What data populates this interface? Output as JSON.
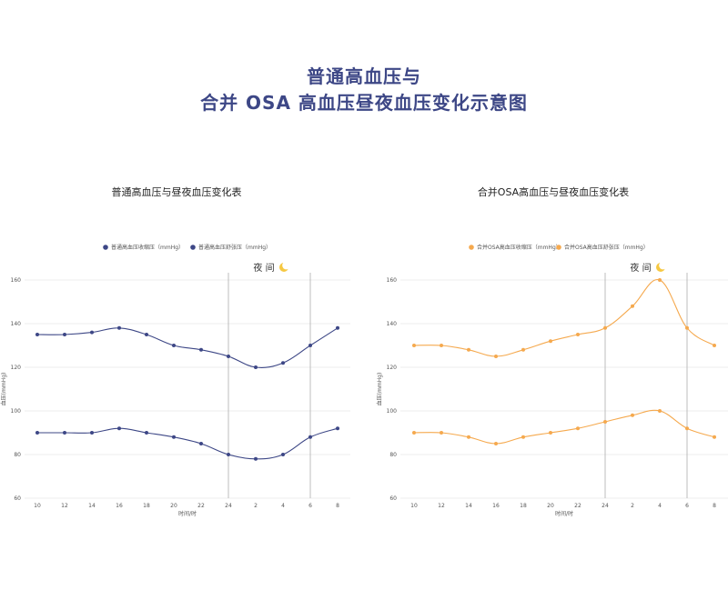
{
  "page": {
    "title_line1": "普通高血压与",
    "title_line2": "合并 OSA 高血压昼夜血压变化示意图"
  },
  "chart_data": [
    {
      "type": "line",
      "title": "普通高血压与昼夜血压变化表",
      "xlabel": "时间/时",
      "ylabel": "血压(mmHg)",
      "categories": [
        "10",
        "12",
        "14",
        "16",
        "18",
        "20",
        "22",
        "24",
        "2",
        "4",
        "6",
        "8"
      ],
      "ylim": [
        60,
        160
      ],
      "yticks": [
        60,
        80,
        100,
        120,
        140,
        160
      ],
      "series": [
        {
          "name": "普通高血压收缩压（mmHg）",
          "values": [
            135,
            135,
            136,
            138,
            135,
            130,
            128,
            125,
            120,
            122,
            130,
            138
          ]
        },
        {
          "name": "普通高血压舒张压（mmHg）",
          "values": [
            90,
            90,
            90,
            92,
            90,
            88,
            85,
            80,
            78,
            80,
            88,
            92
          ]
        }
      ],
      "night_label": "夜 间",
      "night_band": [
        "24",
        "6"
      ],
      "color": "#3d4786",
      "legend_position": "top",
      "grid": "horizontal"
    },
    {
      "type": "line",
      "title": "合并OSA高血压与昼夜血压变化表",
      "xlabel": "时间/时",
      "ylabel": "血压(mmHg)",
      "categories": [
        "10",
        "12",
        "14",
        "16",
        "18",
        "20",
        "22",
        "24",
        "2",
        "4",
        "6",
        "8"
      ],
      "ylim": [
        60,
        160
      ],
      "yticks": [
        60,
        80,
        100,
        120,
        140,
        160
      ],
      "series": [
        {
          "name": "合并OSA高血压收缩压（mmHg）",
          "values": [
            130,
            130,
            128,
            125,
            128,
            132,
            135,
            138,
            148,
            160,
            138,
            130
          ]
        },
        {
          "name": "合并OSA高血压舒张压（mmHg）",
          "values": [
            90,
            90,
            88,
            85,
            88,
            90,
            92,
            95,
            98,
            100,
            92,
            88
          ]
        }
      ],
      "night_label": "夜 间",
      "night_band": [
        "24",
        "6"
      ],
      "color": "#f5a94e",
      "legend_position": "top",
      "grid": "horizontal"
    }
  ]
}
